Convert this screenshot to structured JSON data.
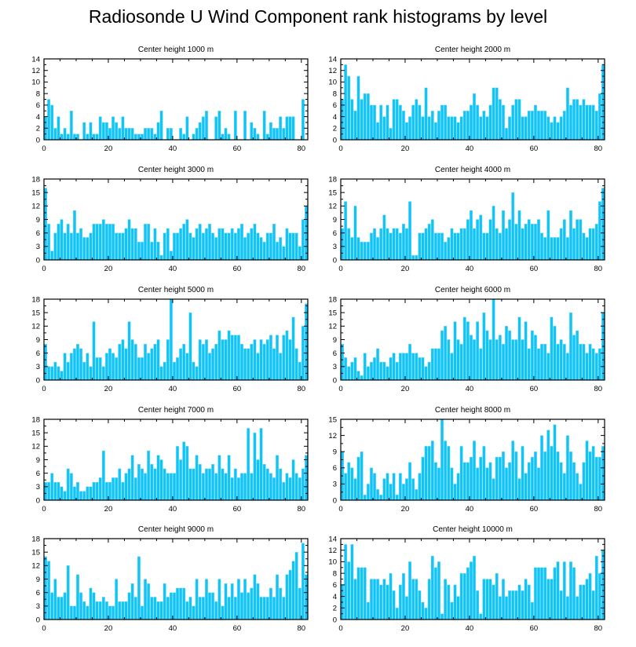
{
  "title": "Radiosonde U Wind Component rank histograms by level",
  "colors": {
    "bar": "#11c3f6",
    "bar_edge": "#7ce3ff",
    "axis": "#000000"
  },
  "chart_data": [
    {
      "type": "bar",
      "title": "Center height 1000 m",
      "xlim": [
        0,
        82
      ],
      "ylim": [
        0,
        14
      ],
      "xticks": [
        0,
        20,
        40,
        60,
        80
      ],
      "yticks": [
        0,
        2,
        4,
        6,
        8,
        10,
        12,
        14
      ],
      "values": [
        4,
        7,
        6,
        2,
        4,
        1,
        2,
        1,
        5,
        1,
        1,
        0,
        3,
        1,
        3,
        1,
        1,
        4,
        3,
        3,
        2,
        4,
        3,
        2,
        4,
        2,
        2,
        2,
        1,
        1,
        1,
        2,
        2,
        2,
        1,
        3,
        5,
        0,
        2,
        2,
        0,
        0,
        2,
        1,
        4,
        0,
        1,
        2,
        3,
        4,
        5,
        0,
        0,
        4,
        5,
        1,
        2,
        1,
        0,
        5,
        0,
        0,
        5,
        0,
        3,
        2,
        1,
        0,
        5,
        1,
        3,
        2,
        2,
        4,
        2,
        4,
        4,
        4,
        0,
        0,
        7,
        0
      ]
    },
    {
      "type": "bar",
      "title": "Center height 2000 m",
      "xlim": [
        0,
        82
      ],
      "ylim": [
        0,
        14
      ],
      "xticks": [
        0,
        20,
        40,
        60,
        80
      ],
      "yticks": [
        0,
        2,
        4,
        6,
        8,
        10,
        12,
        14
      ],
      "values": [
        7,
        13,
        11,
        7,
        5,
        11,
        7,
        8,
        8,
        6,
        6,
        3,
        6,
        4,
        6,
        2,
        7,
        7,
        6,
        5,
        3,
        4,
        6,
        7,
        6,
        4,
        9,
        4,
        5,
        3,
        5,
        6,
        6,
        4,
        4,
        4,
        3,
        4,
        5,
        5,
        6,
        8,
        6,
        4,
        5,
        4,
        6,
        9,
        9,
        7,
        6,
        2,
        4,
        6,
        7,
        7,
        4,
        4,
        5,
        5,
        6,
        5,
        5,
        5,
        4,
        3,
        4,
        3,
        4,
        5,
        9,
        6,
        7,
        7,
        6,
        7,
        6,
        6,
        6,
        5,
        8,
        13
      ]
    },
    {
      "type": "bar",
      "title": "Center height 3000 m",
      "xlim": [
        0,
        82
      ],
      "ylim": [
        0,
        18
      ],
      "xticks": [
        0,
        20,
        40,
        60,
        80
      ],
      "yticks": [
        0,
        3,
        6,
        9,
        12,
        15,
        18
      ],
      "values": [
        16,
        8,
        2,
        6,
        8,
        9,
        6,
        8,
        6,
        11,
        6,
        7,
        5,
        5,
        6,
        8,
        8,
        8,
        9,
        8,
        8,
        8,
        6,
        6,
        6,
        7,
        9,
        7,
        7,
        4,
        4,
        8,
        8,
        4,
        7,
        4,
        1,
        6,
        7,
        2,
        6,
        6,
        7,
        8,
        9,
        6,
        5,
        7,
        8,
        6,
        7,
        8,
        6,
        5,
        7,
        7,
        6,
        6,
        7,
        6,
        7,
        8,
        5,
        6,
        7,
        8,
        6,
        5,
        4,
        6,
        6,
        8,
        4,
        5,
        3,
        7,
        6,
        6,
        6,
        3,
        9,
        12
      ]
    },
    {
      "type": "bar",
      "title": "Center height 4000 m",
      "xlim": [
        0,
        82
      ],
      "ylim": [
        0,
        18
      ],
      "xticks": [
        0,
        20,
        40,
        60,
        80
      ],
      "yticks": [
        0,
        3,
        6,
        9,
        12,
        15,
        18
      ],
      "values": [
        7,
        13,
        7,
        5,
        12,
        5,
        4,
        4,
        4,
        6,
        7,
        5,
        7,
        10,
        7,
        6,
        7,
        7,
        6,
        8,
        7,
        13,
        1,
        1,
        6,
        6,
        7,
        8,
        9,
        6,
        6,
        6,
        4,
        5,
        7,
        6,
        6,
        7,
        7,
        9,
        11,
        7,
        9,
        10,
        6,
        6,
        9,
        12,
        7,
        6,
        11,
        7,
        9,
        15,
        8,
        11,
        7,
        8,
        9,
        8,
        8,
        9,
        6,
        5,
        11,
        5,
        5,
        5,
        7,
        9,
        5,
        11,
        7,
        9,
        9,
        6,
        5,
        7,
        7,
        8,
        13,
        16
      ]
    },
    {
      "type": "bar",
      "title": "Center height 5000 m",
      "xlim": [
        0,
        82
      ],
      "ylim": [
        0,
        18
      ],
      "xticks": [
        0,
        20,
        40,
        60,
        80
      ],
      "yticks": [
        0,
        3,
        6,
        9,
        12,
        15,
        18
      ],
      "values": [
        8,
        3,
        3,
        4,
        3,
        2,
        6,
        4,
        6,
        7,
        8,
        7,
        4,
        6,
        3,
        13,
        5,
        5,
        3,
        6,
        7,
        6,
        5,
        8,
        9,
        7,
        13,
        9,
        8,
        5,
        5,
        8,
        6,
        7,
        8,
        9,
        3,
        4,
        9,
        18,
        4,
        5,
        7,
        8,
        6,
        15,
        4,
        3,
        9,
        8,
        9,
        6,
        7,
        8,
        11,
        9,
        9,
        11,
        10,
        10,
        10,
        8,
        7,
        7,
        8,
        9,
        6,
        9,
        8,
        9,
        10,
        7,
        10,
        6,
        10,
        11,
        9,
        14,
        7,
        4,
        12,
        17
      ]
    },
    {
      "type": "bar",
      "title": "Center height 6000 m",
      "xlim": [
        0,
        82
      ],
      "ylim": [
        0,
        18
      ],
      "xticks": [
        0,
        20,
        40,
        60,
        80
      ],
      "yticks": [
        0,
        3,
        6,
        9,
        12,
        15,
        18
      ],
      "values": [
        8,
        5,
        3,
        4,
        5,
        2,
        1,
        6,
        3,
        4,
        5,
        7,
        4,
        4,
        3,
        5,
        6,
        4,
        6,
        6,
        6,
        8,
        6,
        6,
        5,
        5,
        3,
        4,
        7,
        7,
        7,
        11,
        12,
        9,
        6,
        13,
        9,
        8,
        14,
        13,
        10,
        9,
        13,
        7,
        15,
        11,
        9,
        18,
        9,
        10,
        8,
        12,
        11,
        9,
        9,
        14,
        9,
        13,
        7,
        11,
        10,
        7,
        8,
        8,
        6,
        14,
        12,
        8,
        9,
        8,
        6,
        15,
        10,
        11,
        8,
        8,
        6,
        8,
        7,
        6,
        7,
        15
      ]
    },
    {
      "type": "bar",
      "title": "Center height 7000 m",
      "xlim": [
        0,
        82
      ],
      "ylim": [
        0,
        18
      ],
      "xticks": [
        0,
        20,
        40,
        60,
        80
      ],
      "yticks": [
        0,
        3,
        6,
        9,
        12,
        15,
        18
      ],
      "values": [
        4,
        4,
        6,
        4,
        4,
        3,
        2,
        7,
        6,
        3,
        4,
        2,
        2,
        3,
        3,
        4,
        4,
        5,
        11,
        4,
        4,
        5,
        5,
        7,
        4,
        6,
        7,
        10,
        5,
        8,
        7,
        6,
        11,
        8,
        7,
        10,
        9,
        7,
        6,
        6,
        6,
        12,
        9,
        13,
        12,
        7,
        7,
        10,
        8,
        6,
        7,
        7,
        8,
        6,
        10,
        7,
        6,
        10,
        5,
        7,
        5,
        6,
        6,
        16,
        6,
        15,
        9,
        16,
        8,
        7,
        6,
        5,
        10,
        7,
        4,
        6,
        5,
        9,
        6,
        5,
        7,
        10
      ]
    },
    {
      "type": "bar",
      "title": "Center height 8000 m",
      "xlim": [
        0,
        82
      ],
      "ylim": [
        0,
        15
      ],
      "xticks": [
        0,
        20,
        40,
        60,
        80
      ],
      "yticks": [
        0,
        3,
        6,
        9,
        12,
        15
      ],
      "values": [
        9,
        5,
        7,
        6,
        4,
        8,
        9,
        1,
        3,
        6,
        5,
        2,
        1,
        4,
        5,
        3,
        5,
        1,
        5,
        3,
        4,
        7,
        4,
        2,
        5,
        8,
        10,
        10,
        11,
        7,
        6,
        15,
        11,
        10,
        6,
        3,
        5,
        10,
        7,
        7,
        8,
        11,
        6,
        8,
        10,
        6,
        7,
        4,
        8,
        8,
        9,
        6,
        7,
        11,
        9,
        4,
        10,
        5,
        7,
        8,
        9,
        6,
        12,
        9,
        13,
        10,
        14,
        9,
        7,
        5,
        12,
        9,
        7,
        5,
        3,
        7,
        11,
        9,
        10,
        8,
        8,
        10
      ]
    },
    {
      "type": "bar",
      "title": "Center height 9000 m",
      "xlim": [
        0,
        82
      ],
      "ylim": [
        0,
        18
      ],
      "xticks": [
        0,
        20,
        40,
        60,
        80
      ],
      "yticks": [
        0,
        3,
        6,
        9,
        12,
        15,
        18
      ],
      "values": [
        14,
        13,
        6,
        9,
        5,
        5,
        6,
        12,
        3,
        3,
        10,
        6,
        4,
        3,
        7,
        6,
        4,
        4,
        5,
        4,
        3,
        3,
        9,
        4,
        4,
        4,
        6,
        8,
        5,
        14,
        3,
        9,
        8,
        5,
        5,
        4,
        4,
        8,
        5,
        6,
        6,
        7,
        7,
        7,
        4,
        5,
        3,
        9,
        5,
        5,
        9,
        6,
        6,
        4,
        9,
        3,
        8,
        5,
        8,
        5,
        9,
        6,
        9,
        6,
        7,
        10,
        8,
        5,
        5,
        5,
        7,
        5,
        10,
        7,
        5,
        10,
        11,
        13,
        15,
        7,
        17,
        10
      ]
    },
    {
      "type": "bar",
      "title": "Center height 10000 m",
      "xlim": [
        0,
        82
      ],
      "ylim": [
        0,
        14
      ],
      "xticks": [
        0,
        20,
        40,
        60,
        80
      ],
      "yticks": [
        0,
        2,
        4,
        6,
        8,
        10,
        12,
        14
      ],
      "values": [
        6,
        13,
        10,
        13,
        7,
        9,
        9,
        9,
        3,
        7,
        7,
        7,
        6,
        7,
        6,
        8,
        5,
        2,
        6,
        8,
        4,
        10,
        7,
        7,
        5,
        3,
        2,
        7,
        11,
        9,
        10,
        1,
        7,
        6,
        3,
        6,
        4,
        8,
        8,
        9,
        10,
        11,
        5,
        1,
        7,
        7,
        7,
        6,
        8,
        4,
        7,
        4,
        5,
        5,
        5,
        6,
        5,
        7,
        6,
        3,
        9,
        9,
        9,
        9,
        7,
        7,
        9,
        10,
        5,
        10,
        4,
        10,
        9,
        4,
        6,
        6,
        7,
        8,
        5,
        11,
        8,
        12
      ]
    }
  ]
}
